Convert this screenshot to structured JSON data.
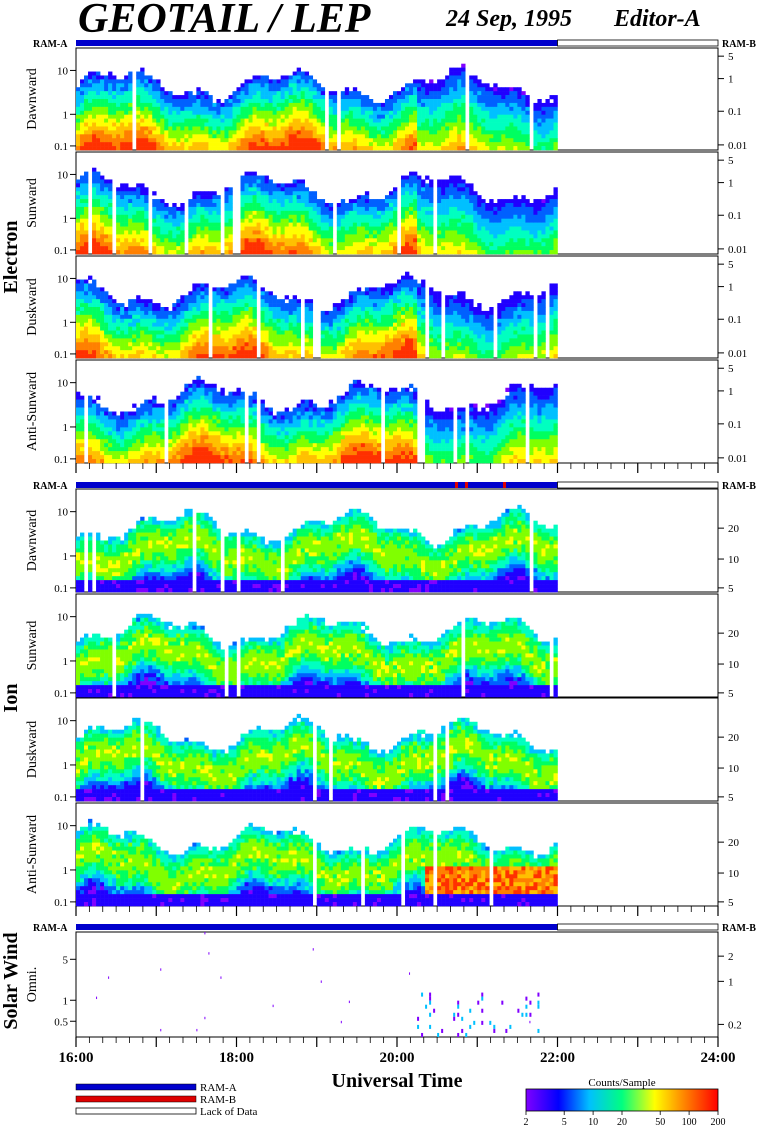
{
  "header": {
    "title": "GEOTAIL / LEP",
    "date": "24 Sep, 1995",
    "editor": "Editor-A"
  },
  "ram_labels": {
    "left": "RAM-A",
    "right": "RAM-B"
  },
  "groups": [
    {
      "label": "Electron",
      "panels": [
        "Dawnward",
        "Sunward",
        "Duskward",
        "Anti-Sunward"
      ]
    },
    {
      "label": "Ion",
      "panels": [
        "Dawnward",
        "Sunward",
        "Duskward",
        "Anti-Sunward"
      ]
    },
    {
      "label": "Solar Wind",
      "panels": [
        "Omni."
      ]
    }
  ],
  "chart_data": {
    "type": "heatmap",
    "xlabel": "Universal Time",
    "x_ticks": [
      "16:00",
      "18:00",
      "20:00",
      "22:00",
      "24:00"
    ],
    "x_range_hours": [
      16,
      24
    ],
    "data_end_hour": 22.0,
    "y_log": true,
    "panels": [
      {
        "group": "Electron",
        "name": "Dawnward",
        "y_ticks_left": [
          "10",
          "1",
          "0.1"
        ],
        "y_ticks_right": [
          "5",
          "1",
          "0.1",
          "0.01"
        ]
      },
      {
        "group": "Electron",
        "name": "Sunward",
        "y_ticks_left": [
          "10",
          "1",
          "0.1"
        ],
        "y_ticks_right": [
          "5",
          "1",
          "0.1",
          "0.01"
        ]
      },
      {
        "group": "Electron",
        "name": "Duskward",
        "y_ticks_left": [
          "10",
          "1",
          "0.1"
        ],
        "y_ticks_right": [
          "5",
          "1",
          "0.1",
          "0.01"
        ]
      },
      {
        "group": "Electron",
        "name": "Anti-Sunward",
        "y_ticks_left": [
          "10",
          "1",
          "0.1"
        ],
        "y_ticks_right": [
          "5",
          "1",
          "0.1",
          "0.01"
        ]
      },
      {
        "group": "Ion",
        "name": "Dawnward",
        "y_ticks_left": [
          "10",
          "1",
          "0.1"
        ],
        "y_ticks_right": [
          "20",
          "10",
          "5"
        ]
      },
      {
        "group": "Ion",
        "name": "Sunward",
        "y_ticks_left": [
          "10",
          "1",
          "0.1"
        ],
        "y_ticks_right": [
          "20",
          "10",
          "5"
        ]
      },
      {
        "group": "Ion",
        "name": "Duskward",
        "y_ticks_left": [
          "10",
          "1",
          "0.1"
        ],
        "y_ticks_right": [
          "20",
          "10",
          "5"
        ]
      },
      {
        "group": "Ion",
        "name": "Anti-Sunward",
        "y_ticks_left": [
          "10",
          "1",
          "0.1"
        ],
        "y_ticks_right": [
          "20",
          "10",
          "5"
        ]
      },
      {
        "group": "Solar Wind",
        "name": "Omni.",
        "y_ticks_left": [
          "5",
          "1",
          "0.5"
        ],
        "y_ticks_right": [
          "2",
          "1",
          "0.2"
        ]
      }
    ],
    "legend": {
      "items": [
        {
          "label": "RAM-A",
          "color": "#0000cc"
        },
        {
          "label": "RAM-B",
          "color": "#dd0000"
        },
        {
          "label": "Lack of Data",
          "color": "#ffffff"
        }
      ]
    },
    "colorbar": {
      "title": "Counts/Sample",
      "scale": "log",
      "range": [
        2,
        200
      ],
      "ticks": [
        "2",
        "5",
        "10",
        "20",
        "50",
        "100",
        "200"
      ],
      "colors": [
        "#8000ff",
        "#0000ff",
        "#00c0ff",
        "#00ff80",
        "#ffff00",
        "#ff8000",
        "#ff0000"
      ]
    }
  }
}
